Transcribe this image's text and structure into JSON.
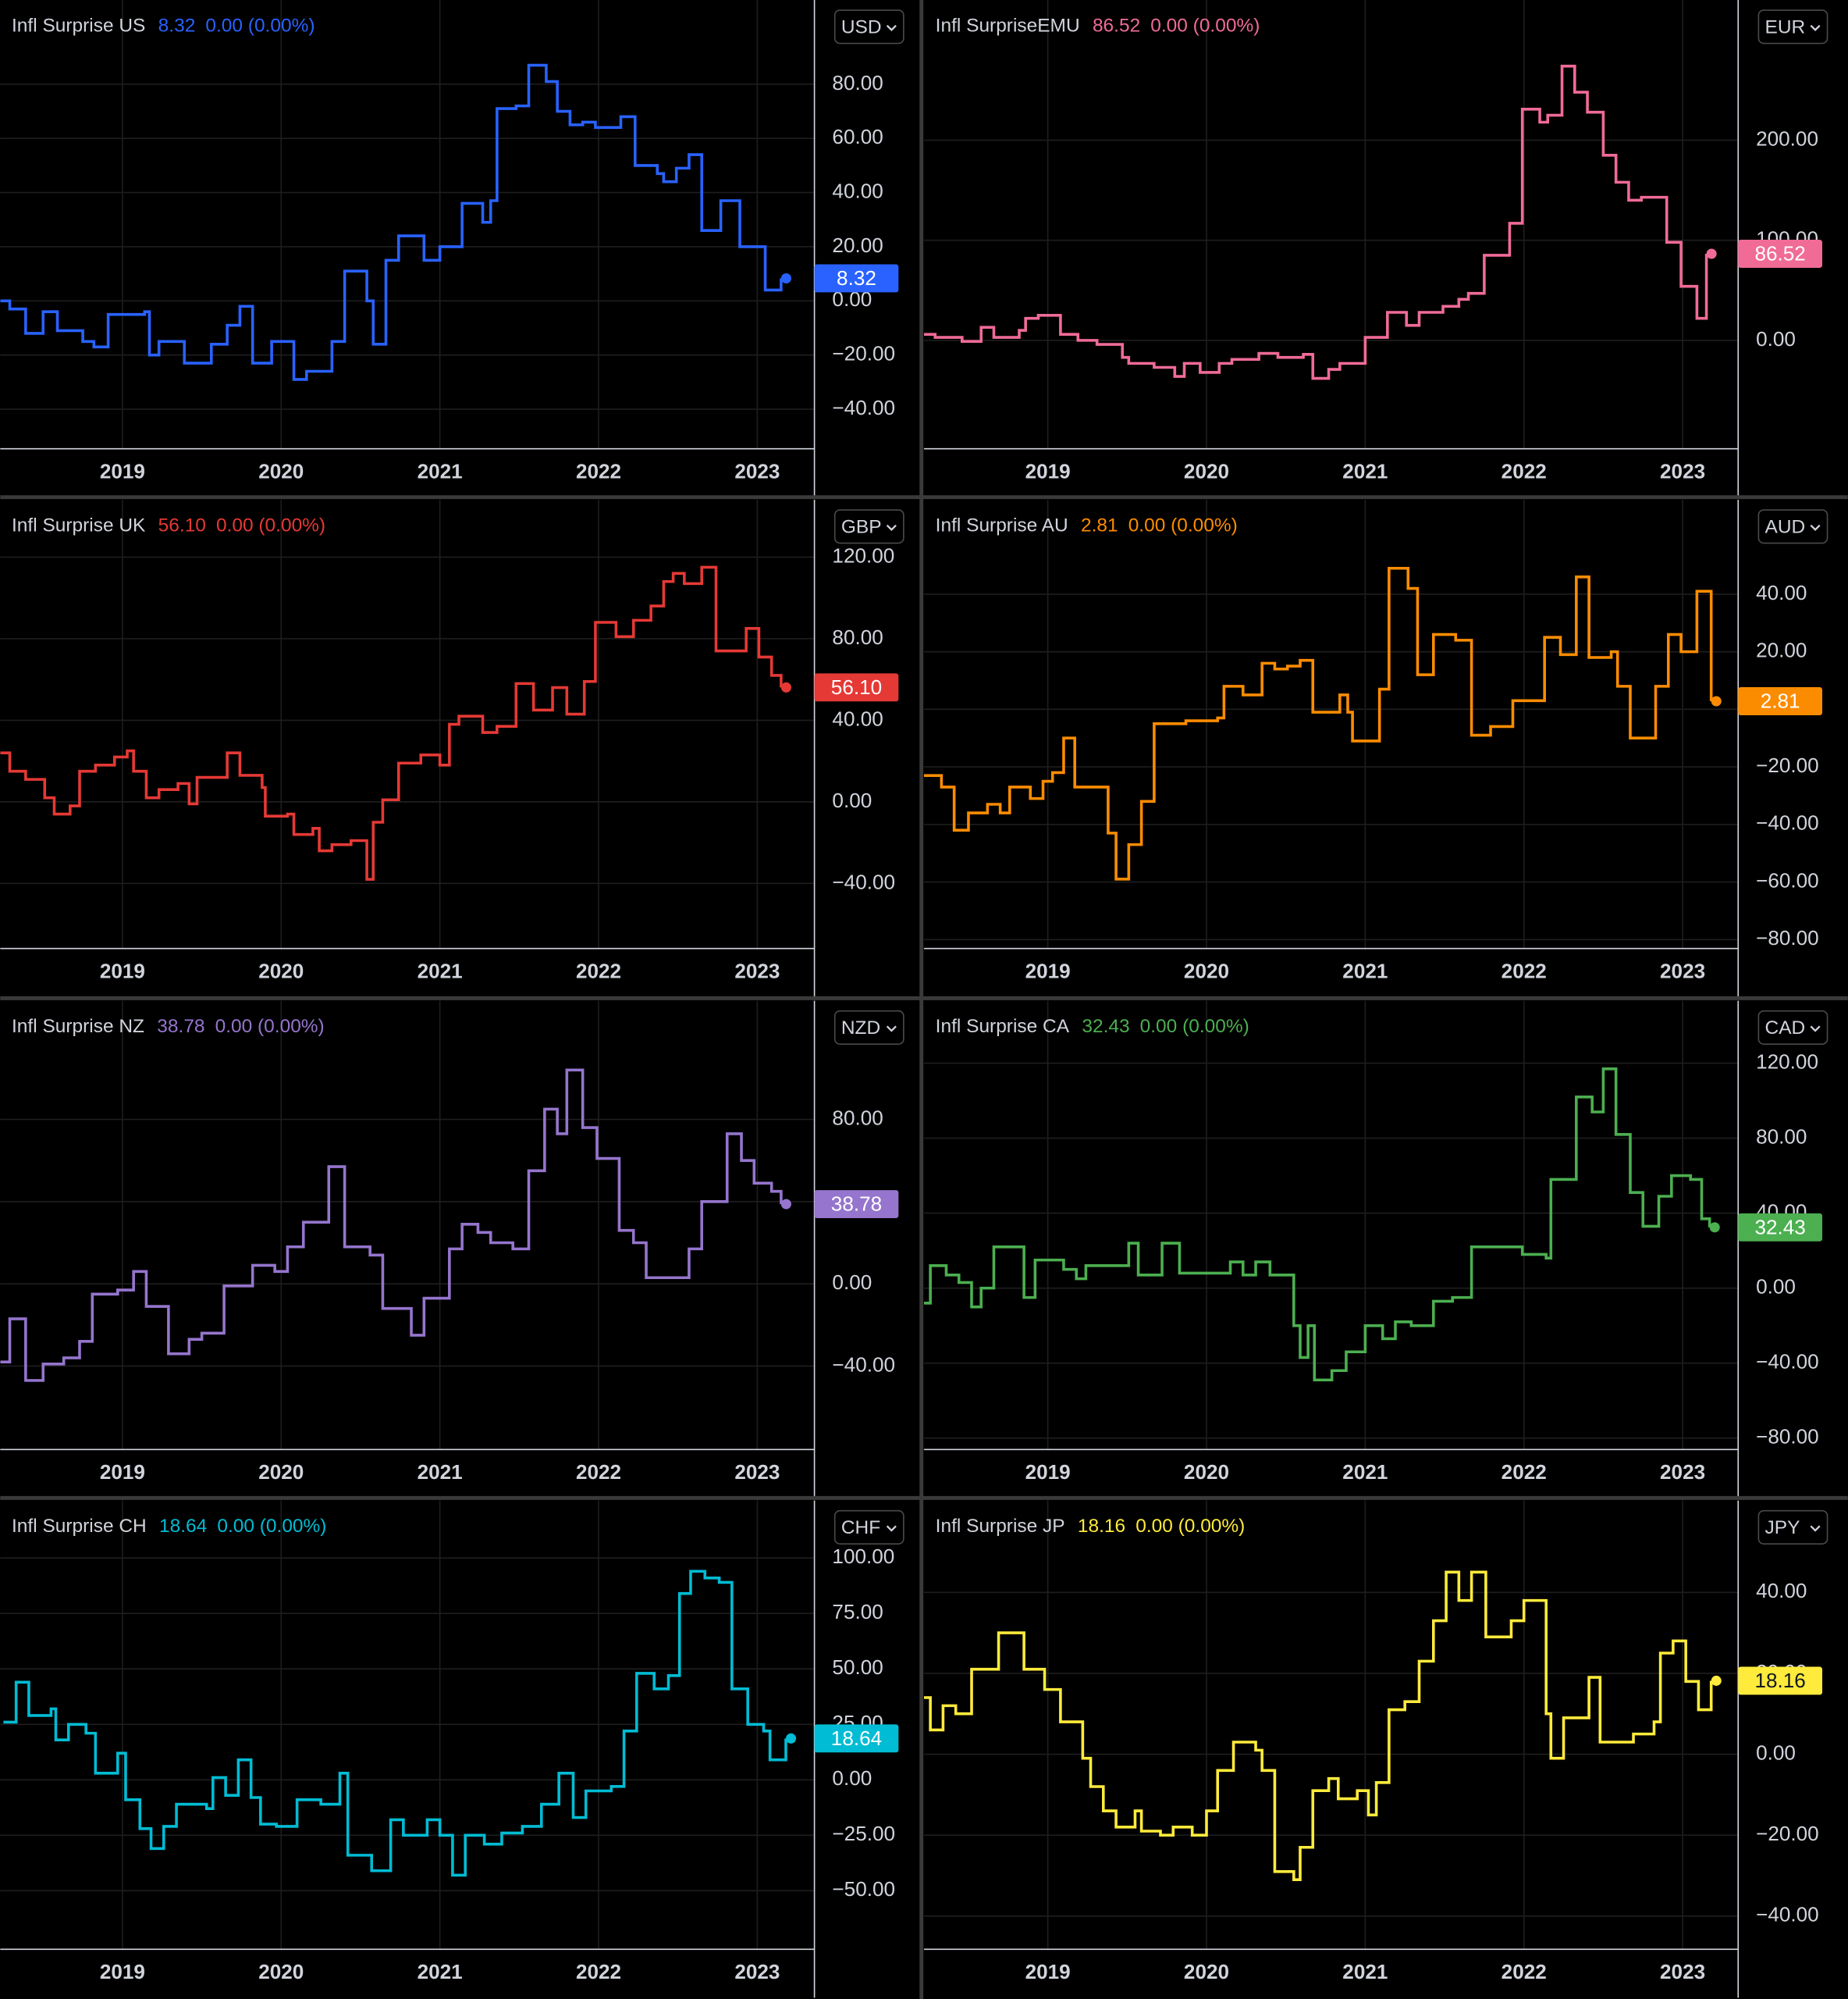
{
  "chart_data": [
    {
      "type": "line",
      "step": true,
      "title": "Infl Surprise US",
      "price_label": "8.32",
      "change_label": "0.00 (0.00%)",
      "currency": "USD",
      "color": "#2962ff",
      "label_text_color": "#ffffff",
      "xlim": [
        2018.23,
        2023.36
      ],
      "xticks": [
        2019,
        2020,
        2021,
        2022,
        2023
      ],
      "ylim": [
        -54.6,
        111.1
      ],
      "yticks": [
        {
          "value": -40,
          "label": "−40.00"
        },
        {
          "value": -20,
          "label": "−20.00"
        },
        {
          "value": 0,
          "label": "0.00"
        },
        {
          "value": 20,
          "label": "20.00"
        },
        {
          "value": 40,
          "label": "40.00"
        },
        {
          "value": 60,
          "label": "60.00"
        },
        {
          "value": 80,
          "label": "80.00"
        }
      ],
      "x": [
        2018.23,
        2018.29,
        2018.39,
        2018.5,
        2018.59,
        2018.75,
        2018.82,
        2018.91,
        2019.14,
        2019.17,
        2019.23,
        2019.39,
        2019.56,
        2019.66,
        2019.74,
        2019.82,
        2019.94,
        2020.08,
        2020.16,
        2020.32,
        2020.4,
        2020.54,
        2020.58,
        2020.66,
        2020.74,
        2020.9,
        2021.0,
        2021.14,
        2021.27,
        2021.32,
        2021.36,
        2021.48,
        2021.56,
        2021.67,
        2021.74,
        2021.82,
        2021.9,
        2021.98,
        2022.14,
        2022.23,
        2022.37,
        2022.41,
        2022.49,
        2022.57,
        2022.65,
        2022.77,
        2022.89,
        2023.05,
        2023.15
      ],
      "values": [
        0,
        -3,
        -12,
        -4,
        -11,
        -15,
        -17,
        -5,
        -4,
        -20,
        -15,
        -23,
        -16,
        -9,
        -2,
        -23,
        -15,
        -29,
        -26,
        -15,
        11,
        0,
        -16,
        15,
        24,
        15,
        20,
        36,
        29,
        37,
        71,
        72,
        87,
        81,
        70,
        65,
        66,
        64,
        68,
        50,
        47,
        44,
        49,
        54,
        26,
        37,
        20,
        4,
        8.32
      ]
    },
    {
      "type": "line",
      "step": true,
      "title": "Infl SurpriseEMU",
      "price_label": "86.52",
      "change_label": "0.00 (0.00%)",
      "currency": "EUR",
      "color": "#f06b96",
      "label_text_color": "#ffffff",
      "xlim": [
        2018.22,
        2023.35
      ],
      "xticks": [
        2019,
        2020,
        2021,
        2022,
        2023
      ],
      "ylim": [
        -108.3,
        340.1
      ],
      "yticks": [
        {
          "value": 0,
          "label": "0.00"
        },
        {
          "value": 100,
          "label": "100.00"
        },
        {
          "value": 200,
          "label": "200.00"
        }
      ],
      "x": [
        2018.21,
        2018.29,
        2018.46,
        2018.58,
        2018.66,
        2018.82,
        2018.86,
        2018.94,
        2019.08,
        2019.19,
        2019.31,
        2019.47,
        2019.51,
        2019.67,
        2019.8,
        2019.86,
        2019.96,
        2020.08,
        2020.16,
        2020.33,
        2020.45,
        2020.61,
        2020.67,
        2020.77,
        2020.84,
        2021.0,
        2021.14,
        2021.26,
        2021.34,
        2021.49,
        2021.59,
        2021.65,
        2021.75,
        2021.91,
        2021.99,
        2022.1,
        2022.15,
        2022.24,
        2022.32,
        2022.4,
        2022.5,
        2022.58,
        2022.66,
        2022.74,
        2022.9,
        2022.99,
        2023.09,
        2023.15
      ],
      "values": [
        6,
        3,
        -1,
        13,
        3,
        10,
        22,
        25,
        6,
        0,
        -4,
        -17,
        -23,
        -27,
        -36,
        -23,
        -32,
        -23,
        -19,
        -13,
        -17,
        -14,
        -38,
        -29,
        -23,
        3,
        28,
        15,
        28,
        34,
        41,
        47,
        85,
        117,
        231,
        218,
        225,
        274,
        248,
        228,
        185,
        158,
        140,
        143,
        98,
        54,
        22,
        86.52
      ]
    },
    {
      "type": "line",
      "step": true,
      "title": "Infl Surprise UK",
      "price_label": "56.10",
      "change_label": "0.00 (0.00%)",
      "currency": "GBP",
      "color": "#e53935",
      "label_text_color": "#ffffff",
      "xlim": [
        2018.23,
        2023.36
      ],
      "xticks": [
        2019,
        2020,
        2021,
        2022,
        2023
      ],
      "ylim": [
        -71.9,
        148.1
      ],
      "yticks": [
        {
          "value": -40,
          "label": "−40.00"
        },
        {
          "value": 0,
          "label": "0.00"
        },
        {
          "value": 40,
          "label": "40.00"
        },
        {
          "value": 80,
          "label": "80.00"
        },
        {
          "value": 120,
          "label": "120.00"
        }
      ],
      "x": [
        2018.23,
        2018.29,
        2018.39,
        2018.51,
        2018.57,
        2018.67,
        2018.73,
        2018.83,
        2018.95,
        2019.03,
        2019.07,
        2019.15,
        2019.23,
        2019.35,
        2019.42,
        2019.47,
        2019.66,
        2019.74,
        2019.88,
        2019.9,
        2020.04,
        2020.08,
        2020.2,
        2020.24,
        2020.32,
        2020.44,
        2020.54,
        2020.58,
        2020.64,
        2020.74,
        2020.88,
        2021.0,
        2021.06,
        2021.12,
        2021.27,
        2021.36,
        2021.48,
        2021.59,
        2021.71,
        2021.8,
        2021.91,
        2021.98,
        2022.11,
        2022.22,
        2022.33,
        2022.41,
        2022.47,
        2022.54,
        2022.65,
        2022.74,
        2022.93,
        2023.01,
        2023.09,
        2023.15
      ],
      "values": [
        24,
        15,
        11,
        2,
        -6,
        -2,
        15,
        18,
        22,
        25,
        15,
        2,
        6,
        9,
        -1,
        12,
        24,
        13,
        7,
        -7,
        -6,
        -16,
        -13,
        -24,
        -21,
        -19,
        -38,
        -10,
        1,
        19,
        23,
        18,
        38,
        42,
        34,
        37,
        58,
        45,
        56,
        43,
        59,
        88,
        81,
        89,
        96,
        108,
        112,
        107,
        115,
        74,
        85,
        71,
        62,
        56.1
      ]
    },
    {
      "type": "line",
      "step": true,
      "title": "Infl Surprise AU",
      "price_label": "2.81",
      "change_label": "0.00 (0.00%)",
      "currency": "AUD",
      "color": "#fb8c00",
      "label_text_color": "#ffffff",
      "xlim": [
        2018.22,
        2023.35
      ],
      "xticks": [
        2019,
        2020,
        2021,
        2022,
        2023
      ],
      "ylim": [
        -83.1,
        72.8
      ],
      "yticks": [
        {
          "value": -80,
          "label": "−80.00"
        },
        {
          "value": -60,
          "label": "−60.00"
        },
        {
          "value": -40,
          "label": "−40.00"
        },
        {
          "value": -20,
          "label": "−20.00"
        },
        {
          "value": 0,
          "label": "0.00"
        },
        {
          "value": 20,
          "label": "20.00"
        },
        {
          "value": 40,
          "label": "40.00"
        }
      ],
      "x": [
        2018.22,
        2018.33,
        2018.41,
        2018.5,
        2018.62,
        2018.7,
        2018.76,
        2018.89,
        2018.97,
        2019.03,
        2019.1,
        2019.17,
        2019.38,
        2019.43,
        2019.51,
        2019.59,
        2019.67,
        2019.87,
        2020.07,
        2020.11,
        2020.23,
        2020.35,
        2020.43,
        2020.51,
        2020.59,
        2020.67,
        2020.84,
        2020.89,
        2020.92,
        2021.09,
        2021.15,
        2021.27,
        2021.33,
        2021.43,
        2021.57,
        2021.67,
        2021.79,
        2021.93,
        2022.13,
        2022.23,
        2022.33,
        2022.41,
        2022.55,
        2022.59,
        2022.67,
        2022.83,
        2022.91,
        2022.99,
        2023.09,
        2023.18
      ],
      "values": [
        -23,
        -27,
        -42,
        -36,
        -33,
        -36,
        -27,
        -31,
        -25,
        -22,
        -10,
        -27,
        -43,
        -59,
        -47,
        -32,
        -5,
        -4,
        -3,
        8,
        5,
        16,
        14,
        15,
        17,
        -1,
        5,
        -1,
        -11,
        7,
        49,
        42,
        12,
        26,
        24,
        -9,
        -6,
        3,
        25,
        19,
        46,
        18,
        20,
        8,
        -10,
        8,
        26,
        20,
        41,
        2.81
      ]
    },
    {
      "type": "line",
      "step": true,
      "title": "Infl Surprise NZ",
      "price_label": "38.78",
      "change_label": "0.00 (0.00%)",
      "currency": "NZD",
      "color": "#9575cd",
      "label_text_color": "#ffffff",
      "xlim": [
        2018.23,
        2023.36
      ],
      "xticks": [
        2019,
        2020,
        2021,
        2022,
        2023
      ],
      "ylim": [
        -80.6,
        137.7
      ],
      "yticks": [
        {
          "value": -40,
          "label": "−40.00"
        },
        {
          "value": 0,
          "label": "0.00"
        },
        {
          "value": 40,
          "label": "40.00"
        },
        {
          "value": 80,
          "label": "80.00"
        }
      ],
      "x": [
        2018.23,
        2018.29,
        2018.39,
        2018.5,
        2018.63,
        2018.73,
        2018.81,
        2018.97,
        2019.07,
        2019.15,
        2019.29,
        2019.42,
        2019.5,
        2019.64,
        2019.82,
        2019.96,
        2020.04,
        2020.14,
        2020.3,
        2020.4,
        2020.56,
        2020.64,
        2020.82,
        2020.9,
        2021.06,
        2021.14,
        2021.24,
        2021.32,
        2021.46,
        2021.56,
        2021.66,
        2021.74,
        2021.8,
        2021.9,
        2021.99,
        2022.13,
        2022.22,
        2022.3,
        2022.57,
        2022.65,
        2022.81,
        2022.9,
        2022.98,
        2023.09,
        2023.15
      ],
      "values": [
        -38,
        -17,
        -47,
        -39,
        -36,
        -28,
        -5,
        -3,
        6,
        -11,
        -34,
        -27,
        -24,
        -1,
        9,
        6,
        18,
        30,
        57,
        18,
        14,
        -12,
        -25,
        -7,
        17,
        29,
        25,
        20,
        17,
        55,
        85,
        73,
        104,
        76,
        61,
        26,
        20,
        3,
        17,
        40,
        73,
        60,
        49,
        45,
        38.78
      ]
    },
    {
      "type": "line",
      "step": true,
      "title": "Infl Surprise CA",
      "price_label": "32.43",
      "change_label": "0.00 (0.00%)",
      "currency": "CAD",
      "color": "#4caf50",
      "label_text_color": "#ffffff",
      "xlim": [
        2018.22,
        2023.35
      ],
      "xticks": [
        2019,
        2020,
        2021,
        2022,
        2023
      ],
      "ylim": [
        -86.1,
        153.3
      ],
      "yticks": [
        {
          "value": -80,
          "label": "−80.00"
        },
        {
          "value": -40,
          "label": "−40.00"
        },
        {
          "value": 0,
          "label": "0.00"
        },
        {
          "value": 40,
          "label": "40.00"
        },
        {
          "value": 80,
          "label": "80.00"
        },
        {
          "value": 120,
          "label": "120.00"
        }
      ],
      "x": [
        2018.22,
        2018.26,
        2018.36,
        2018.44,
        2018.52,
        2018.58,
        2018.66,
        2018.85,
        2018.92,
        2019.1,
        2019.18,
        2019.24,
        2019.51,
        2019.57,
        2019.72,
        2019.83,
        2020.15,
        2020.23,
        2020.31,
        2020.4,
        2020.55,
        2020.59,
        2020.64,
        2020.68,
        2020.79,
        2020.88,
        2021.0,
        2021.11,
        2021.19,
        2021.29,
        2021.43,
        2021.55,
        2021.67,
        2021.91,
        2021.99,
        2022.14,
        2022.17,
        2022.33,
        2022.43,
        2022.5,
        2022.58,
        2022.67,
        2022.75,
        2022.85,
        2022.93,
        2023.05,
        2023.12,
        2023.17
      ],
      "values": [
        -8,
        12,
        7,
        3,
        -10,
        0,
        22,
        -5,
        15,
        10,
        5,
        12,
        24,
        7,
        24,
        8,
        14,
        7,
        14,
        7,
        -20,
        -37,
        -20,
        -49,
        -44,
        -34,
        -20,
        -27,
        -18,
        -20,
        -7,
        -5,
        22,
        22,
        18,
        16,
        58,
        102,
        94,
        117,
        82,
        51,
        33,
        49,
        60,
        58,
        37,
        32.43
      ]
    },
    {
      "type": "line",
      "step": true,
      "title": "Infl Surprise CH",
      "price_label": "18.64",
      "change_label": "0.00 (0.00%)",
      "currency": "CHF",
      "color": "#00bcd4",
      "label_text_color": "#ffffff",
      "xlim": [
        2018.23,
        2023.36
      ],
      "xticks": [
        2019,
        2020,
        2021,
        2022,
        2023
      ],
      "ylim": [
        -76.4,
        125.9
      ],
      "yticks": [
        {
          "value": -50,
          "label": "−50.00"
        },
        {
          "value": -25,
          "label": "−25.00"
        },
        {
          "value": 0,
          "label": "0.00"
        },
        {
          "value": 25,
          "label": "25.00"
        },
        {
          "value": 50,
          "label": "50.00"
        },
        {
          "value": 75,
          "label": "75.00"
        },
        {
          "value": 100,
          "label": "100.00"
        }
      ],
      "x": [
        2018.25,
        2018.33,
        2018.41,
        2018.55,
        2018.58,
        2018.66,
        2018.77,
        2018.83,
        2018.97,
        2019.02,
        2019.11,
        2019.18,
        2019.26,
        2019.34,
        2019.53,
        2019.57,
        2019.65,
        2019.73,
        2019.81,
        2019.87,
        2019.97,
        2020.1,
        2020.25,
        2020.37,
        2020.42,
        2020.57,
        2020.69,
        2020.77,
        2020.92,
        2021.0,
        2021.08,
        2021.16,
        2021.28,
        2021.39,
        2021.52,
        2021.64,
        2021.75,
        2021.84,
        2021.92,
        2022.08,
        2022.16,
        2022.24,
        2022.35,
        2022.44,
        2022.51,
        2022.58,
        2022.67,
        2022.76,
        2022.84,
        2022.94,
        2023.04,
        2023.08,
        2023.18
      ],
      "values": [
        26,
        44,
        29,
        32,
        18,
        25,
        21,
        3,
        12,
        -9,
        -22,
        -31,
        -21,
        -11,
        -13,
        1,
        -7,
        9,
        -8,
        -20,
        -21,
        -9,
        -11,
        3,
        -34,
        -41,
        -18,
        -25,
        -18,
        -25,
        -43,
        -25,
        -29,
        -24,
        -21,
        -11,
        3,
        -17,
        -5,
        -3,
        22,
        48,
        41,
        47,
        84,
        94,
        91,
        89,
        41,
        25,
        22,
        9,
        18.64
      ]
    },
    {
      "type": "line",
      "step": true,
      "title": "Infl Surprise JP",
      "price_label": "18.16",
      "change_label": "0.00 (0.00%)",
      "currency": "JPY",
      "color": "#ffeb3b",
      "label_text_color": "#131722",
      "xlim": [
        2018.22,
        2023.35
      ],
      "xticks": [
        2019,
        2020,
        2021,
        2022,
        2023
      ],
      "ylim": [
        -48.2,
        62.7
      ],
      "yticks": [
        {
          "value": -40,
          "label": "−40.00"
        },
        {
          "value": -20,
          "label": "−20.00"
        },
        {
          "value": 0,
          "label": "0.00"
        },
        {
          "value": 20,
          "label": "20.00"
        },
        {
          "value": 40,
          "label": "40.00"
        }
      ],
      "x": [
        2018.22,
        2018.26,
        2018.34,
        2018.42,
        2018.52,
        2018.69,
        2018.85,
        2018.98,
        2019.08,
        2019.22,
        2019.27,
        2019.35,
        2019.43,
        2019.55,
        2019.59,
        2019.71,
        2019.79,
        2019.91,
        2020.0,
        2020.07,
        2020.17,
        2020.31,
        2020.35,
        2020.43,
        2020.55,
        2020.59,
        2020.67,
        2020.77,
        2020.83,
        2020.95,
        2021.02,
        2021.07,
        2021.15,
        2021.25,
        2021.34,
        2021.43,
        2021.51,
        2021.59,
        2021.67,
        2021.76,
        2021.92,
        2022.0,
        2022.14,
        2022.17,
        2022.25,
        2022.41,
        2022.48,
        2022.69,
        2022.82,
        2022.86,
        2022.94,
        2023.02,
        2023.1,
        2023.18
      ],
      "values": [
        14,
        6,
        12,
        10,
        21,
        30,
        21,
        16,
        8,
        -1,
        -8,
        -14,
        -18,
        -14,
        -19,
        -20,
        -18,
        -20,
        -14,
        -4,
        3,
        1,
        -4,
        -29,
        -31,
        -23,
        -9,
        -6,
        -11,
        -9,
        -15,
        -7,
        11,
        13,
        23,
        33,
        45,
        38,
        45,
        29,
        33,
        38,
        10,
        -1,
        9,
        19,
        3,
        5,
        8,
        25,
        28,
        18,
        11,
        18.16
      ]
    }
  ]
}
